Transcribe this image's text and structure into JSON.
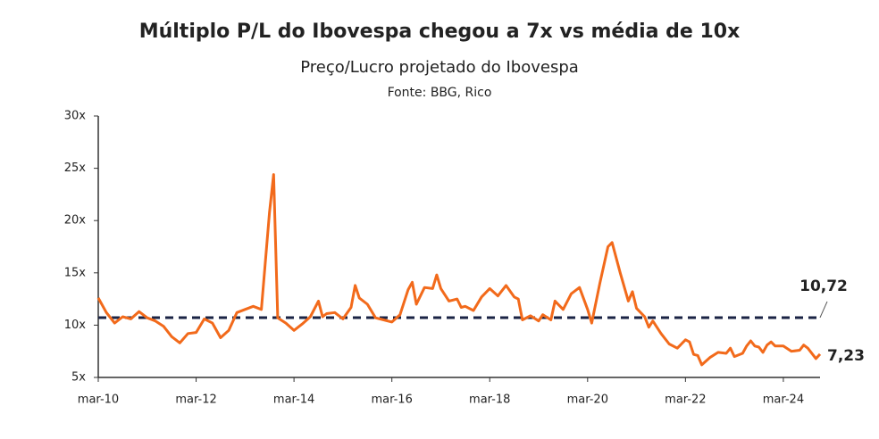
{
  "chart_data": {
    "type": "line",
    "title": "Múltiplo P/L do Ibovespa chegou a 7x vs média de 10x",
    "subtitle": "Preço/Lucro projetado do Ibovespa",
    "source": "Fonte: BBG, Rico",
    "x": [
      "2010-03",
      "2010-05",
      "2010-07",
      "2010-09",
      "2010-11",
      "2011-01",
      "2011-03",
      "2011-05",
      "2011-07",
      "2011-09",
      "2011-11",
      "2012-01",
      "2012-03",
      "2012-05",
      "2012-07",
      "2012-09",
      "2012-11",
      "2013-01",
      "2013-03",
      "2013-05",
      "2013-07",
      "2013-09",
      "2013-10",
      "2013-11",
      "2014-01",
      "2014-03",
      "2014-05",
      "2014-07",
      "2014-09",
      "2014-10",
      "2014-11",
      "2015-01",
      "2015-03",
      "2015-05",
      "2015-06",
      "2015-07",
      "2015-09",
      "2015-11",
      "2016-01",
      "2016-03",
      "2016-05",
      "2016-07",
      "2016-08",
      "2016-09",
      "2016-11",
      "2017-01",
      "2017-02",
      "2017-03",
      "2017-05",
      "2017-07",
      "2017-08",
      "2017-09",
      "2017-11",
      "2018-01",
      "2018-03",
      "2018-05",
      "2018-07",
      "2018-09",
      "2018-10",
      "2018-11",
      "2019-01",
      "2019-03",
      "2019-04",
      "2019-06",
      "2019-07",
      "2019-09",
      "2019-11",
      "2020-01",
      "2020-03",
      "2020-04",
      "2020-06",
      "2020-08",
      "2020-09",
      "2020-11",
      "2021-01",
      "2021-02",
      "2021-03",
      "2021-05",
      "2021-06",
      "2021-07",
      "2021-09",
      "2021-11",
      "2022-01",
      "2022-02",
      "2022-03",
      "2022-04",
      "2022-05",
      "2022-06",
      "2022-07",
      "2022-09",
      "2022-11",
      "2023-01",
      "2023-02",
      "2023-03",
      "2023-05",
      "2023-06",
      "2023-07",
      "2023-08",
      "2023-09",
      "2023-10",
      "2023-11",
      "2023-12",
      "2024-01",
      "2024-03",
      "2024-05",
      "2024-07",
      "2024-08",
      "2024-09",
      "2024-11",
      "2024-12"
    ],
    "series": [
      {
        "name": "P/L",
        "color": "#f26a1b",
        "values": [
          12.6,
          11.2,
          10.2,
          10.8,
          10.6,
          11.3,
          10.7,
          10.4,
          9.9,
          8.9,
          8.3,
          9.2,
          9.3,
          10.6,
          10.2,
          8.8,
          9.5,
          11.2,
          11.5,
          11.8,
          11.5,
          20.8,
          24.4,
          10.7,
          10.2,
          9.5,
          10.1,
          10.8,
          12.3,
          10.8,
          11.1,
          11.2,
          10.6,
          11.7,
          13.8,
          12.6,
          12.0,
          10.7,
          10.5,
          10.3,
          11.0,
          13.4,
          14.1,
          12.0,
          13.6,
          13.5,
          14.8,
          13.5,
          12.3,
          12.5,
          11.7,
          11.8,
          11.4,
          12.7,
          13.5,
          12.8,
          13.8,
          12.7,
          12.5,
          10.5,
          10.9,
          10.4,
          11.0,
          10.5,
          12.3,
          11.5,
          13.0,
          13.6,
          11.5,
          10.2,
          14.0,
          17.5,
          17.9,
          15.0,
          12.3,
          13.2,
          11.6,
          10.8,
          9.8,
          10.4,
          9.2,
          8.2,
          7.8,
          8.2,
          8.6,
          8.4,
          7.2,
          7.1,
          6.2,
          6.9,
          7.4,
          7.3,
          7.8,
          7.0,
          7.3,
          8.0,
          8.5,
          8.0,
          7.9,
          7.4,
          8.1,
          8.4,
          8.0,
          8.0,
          7.5,
          7.6,
          8.1,
          7.8,
          6.8,
          7.23
        ],
        "value_labels": [
          null,
          null,
          null,
          null,
          null,
          null,
          null,
          null,
          null,
          null,
          null,
          null,
          null,
          null,
          null,
          null,
          null,
          null,
          null,
          null,
          null,
          null,
          null,
          null,
          null,
          null,
          null,
          null,
          null,
          null,
          null,
          null,
          null,
          null,
          null,
          null,
          null,
          null,
          null,
          null,
          null,
          null,
          null,
          null,
          null,
          null,
          null,
          null,
          null,
          null,
          null,
          null,
          null,
          null,
          null,
          null,
          null,
          null,
          null,
          null,
          null,
          null,
          null,
          null,
          null,
          null,
          null,
          null,
          null,
          null,
          null,
          null,
          null,
          null,
          null,
          null,
          null,
          null,
          null,
          null,
          null,
          null,
          null,
          null,
          null,
          null,
          null,
          null,
          null,
          null,
          null,
          null,
          null,
          null,
          null,
          null,
          null,
          null,
          null,
          null,
          null,
          null,
          null,
          null,
          null,
          null,
          null,
          null,
          null,
          "7,23"
        ]
      }
    ],
    "reference_line": {
      "value": 10.72,
      "label": "10,72",
      "color": "#1a2344"
    },
    "xlim": [
      "2010-03",
      "2024-12"
    ],
    "xticks": [
      {
        "value": "2010-03",
        "label": "mar-10"
      },
      {
        "value": "2012-03",
        "label": "mar-12"
      },
      {
        "value": "2014-03",
        "label": "mar-14"
      },
      {
        "value": "2016-03",
        "label": "mar-16"
      },
      {
        "value": "2018-03",
        "label": "mar-18"
      },
      {
        "value": "2020-03",
        "label": "mar-20"
      },
      {
        "value": "2022-03",
        "label": "mar-22"
      },
      {
        "value": "2024-03",
        "label": "mar-24"
      }
    ],
    "ylim": [
      5,
      30
    ],
    "yticks": [
      {
        "value": 5,
        "label": "5x"
      },
      {
        "value": 10,
        "label": "10x"
      },
      {
        "value": 15,
        "label": "15x"
      },
      {
        "value": 20,
        "label": "20x"
      },
      {
        "value": 25,
        "label": "25x"
      },
      {
        "value": 30,
        "label": "30x"
      }
    ],
    "grid": false
  }
}
